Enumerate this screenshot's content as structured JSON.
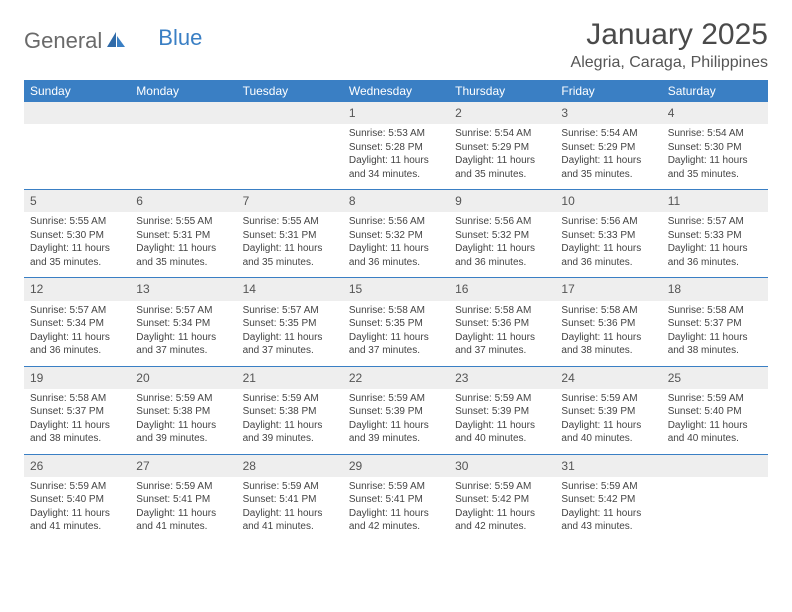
{
  "logo": {
    "part1": "General",
    "part2": "Blue"
  },
  "title": "January 2025",
  "location": "Alegria, Caraga, Philippines",
  "weekdays": [
    "Sunday",
    "Monday",
    "Tuesday",
    "Wednesday",
    "Thursday",
    "Friday",
    "Saturday"
  ],
  "colors": {
    "header_bg": "#3a7fc4",
    "header_text": "#ffffff",
    "daynum_bg": "#eeeeee",
    "body_text": "#444444",
    "divider": "#3a7fc4",
    "logo_gray": "#6a6a6a"
  },
  "typography": {
    "title_fontsize": 30,
    "location_fontsize": 16,
    "weekday_fontsize": 12,
    "daynum_fontsize": 12,
    "cell_fontsize": 10
  },
  "weeks": [
    [
      null,
      null,
      null,
      {
        "n": "1",
        "sr": "Sunrise: 5:53 AM",
        "ss": "Sunset: 5:28 PM",
        "d1": "Daylight: 11 hours",
        "d2": "and 34 minutes."
      },
      {
        "n": "2",
        "sr": "Sunrise: 5:54 AM",
        "ss": "Sunset: 5:29 PM",
        "d1": "Daylight: 11 hours",
        "d2": "and 35 minutes."
      },
      {
        "n": "3",
        "sr": "Sunrise: 5:54 AM",
        "ss": "Sunset: 5:29 PM",
        "d1": "Daylight: 11 hours",
        "d2": "and 35 minutes."
      },
      {
        "n": "4",
        "sr": "Sunrise: 5:54 AM",
        "ss": "Sunset: 5:30 PM",
        "d1": "Daylight: 11 hours",
        "d2": "and 35 minutes."
      }
    ],
    [
      {
        "n": "5",
        "sr": "Sunrise: 5:55 AM",
        "ss": "Sunset: 5:30 PM",
        "d1": "Daylight: 11 hours",
        "d2": "and 35 minutes."
      },
      {
        "n": "6",
        "sr": "Sunrise: 5:55 AM",
        "ss": "Sunset: 5:31 PM",
        "d1": "Daylight: 11 hours",
        "d2": "and 35 minutes."
      },
      {
        "n": "7",
        "sr": "Sunrise: 5:55 AM",
        "ss": "Sunset: 5:31 PM",
        "d1": "Daylight: 11 hours",
        "d2": "and 35 minutes."
      },
      {
        "n": "8",
        "sr": "Sunrise: 5:56 AM",
        "ss": "Sunset: 5:32 PM",
        "d1": "Daylight: 11 hours",
        "d2": "and 36 minutes."
      },
      {
        "n": "9",
        "sr": "Sunrise: 5:56 AM",
        "ss": "Sunset: 5:32 PM",
        "d1": "Daylight: 11 hours",
        "d2": "and 36 minutes."
      },
      {
        "n": "10",
        "sr": "Sunrise: 5:56 AM",
        "ss": "Sunset: 5:33 PM",
        "d1": "Daylight: 11 hours",
        "d2": "and 36 minutes."
      },
      {
        "n": "11",
        "sr": "Sunrise: 5:57 AM",
        "ss": "Sunset: 5:33 PM",
        "d1": "Daylight: 11 hours",
        "d2": "and 36 minutes."
      }
    ],
    [
      {
        "n": "12",
        "sr": "Sunrise: 5:57 AM",
        "ss": "Sunset: 5:34 PM",
        "d1": "Daylight: 11 hours",
        "d2": "and 36 minutes."
      },
      {
        "n": "13",
        "sr": "Sunrise: 5:57 AM",
        "ss": "Sunset: 5:34 PM",
        "d1": "Daylight: 11 hours",
        "d2": "and 37 minutes."
      },
      {
        "n": "14",
        "sr": "Sunrise: 5:57 AM",
        "ss": "Sunset: 5:35 PM",
        "d1": "Daylight: 11 hours",
        "d2": "and 37 minutes."
      },
      {
        "n": "15",
        "sr": "Sunrise: 5:58 AM",
        "ss": "Sunset: 5:35 PM",
        "d1": "Daylight: 11 hours",
        "d2": "and 37 minutes."
      },
      {
        "n": "16",
        "sr": "Sunrise: 5:58 AM",
        "ss": "Sunset: 5:36 PM",
        "d1": "Daylight: 11 hours",
        "d2": "and 37 minutes."
      },
      {
        "n": "17",
        "sr": "Sunrise: 5:58 AM",
        "ss": "Sunset: 5:36 PM",
        "d1": "Daylight: 11 hours",
        "d2": "and 38 minutes."
      },
      {
        "n": "18",
        "sr": "Sunrise: 5:58 AM",
        "ss": "Sunset: 5:37 PM",
        "d1": "Daylight: 11 hours",
        "d2": "and 38 minutes."
      }
    ],
    [
      {
        "n": "19",
        "sr": "Sunrise: 5:58 AM",
        "ss": "Sunset: 5:37 PM",
        "d1": "Daylight: 11 hours",
        "d2": "and 38 minutes."
      },
      {
        "n": "20",
        "sr": "Sunrise: 5:59 AM",
        "ss": "Sunset: 5:38 PM",
        "d1": "Daylight: 11 hours",
        "d2": "and 39 minutes."
      },
      {
        "n": "21",
        "sr": "Sunrise: 5:59 AM",
        "ss": "Sunset: 5:38 PM",
        "d1": "Daylight: 11 hours",
        "d2": "and 39 minutes."
      },
      {
        "n": "22",
        "sr": "Sunrise: 5:59 AM",
        "ss": "Sunset: 5:39 PM",
        "d1": "Daylight: 11 hours",
        "d2": "and 39 minutes."
      },
      {
        "n": "23",
        "sr": "Sunrise: 5:59 AM",
        "ss": "Sunset: 5:39 PM",
        "d1": "Daylight: 11 hours",
        "d2": "and 40 minutes."
      },
      {
        "n": "24",
        "sr": "Sunrise: 5:59 AM",
        "ss": "Sunset: 5:39 PM",
        "d1": "Daylight: 11 hours",
        "d2": "and 40 minutes."
      },
      {
        "n": "25",
        "sr": "Sunrise: 5:59 AM",
        "ss": "Sunset: 5:40 PM",
        "d1": "Daylight: 11 hours",
        "d2": "and 40 minutes."
      }
    ],
    [
      {
        "n": "26",
        "sr": "Sunrise: 5:59 AM",
        "ss": "Sunset: 5:40 PM",
        "d1": "Daylight: 11 hours",
        "d2": "and 41 minutes."
      },
      {
        "n": "27",
        "sr": "Sunrise: 5:59 AM",
        "ss": "Sunset: 5:41 PM",
        "d1": "Daylight: 11 hours",
        "d2": "and 41 minutes."
      },
      {
        "n": "28",
        "sr": "Sunrise: 5:59 AM",
        "ss": "Sunset: 5:41 PM",
        "d1": "Daylight: 11 hours",
        "d2": "and 41 minutes."
      },
      {
        "n": "29",
        "sr": "Sunrise: 5:59 AM",
        "ss": "Sunset: 5:41 PM",
        "d1": "Daylight: 11 hours",
        "d2": "and 42 minutes."
      },
      {
        "n": "30",
        "sr": "Sunrise: 5:59 AM",
        "ss": "Sunset: 5:42 PM",
        "d1": "Daylight: 11 hours",
        "d2": "and 42 minutes."
      },
      {
        "n": "31",
        "sr": "Sunrise: 5:59 AM",
        "ss": "Sunset: 5:42 PM",
        "d1": "Daylight: 11 hours",
        "d2": "and 43 minutes."
      },
      null
    ]
  ]
}
